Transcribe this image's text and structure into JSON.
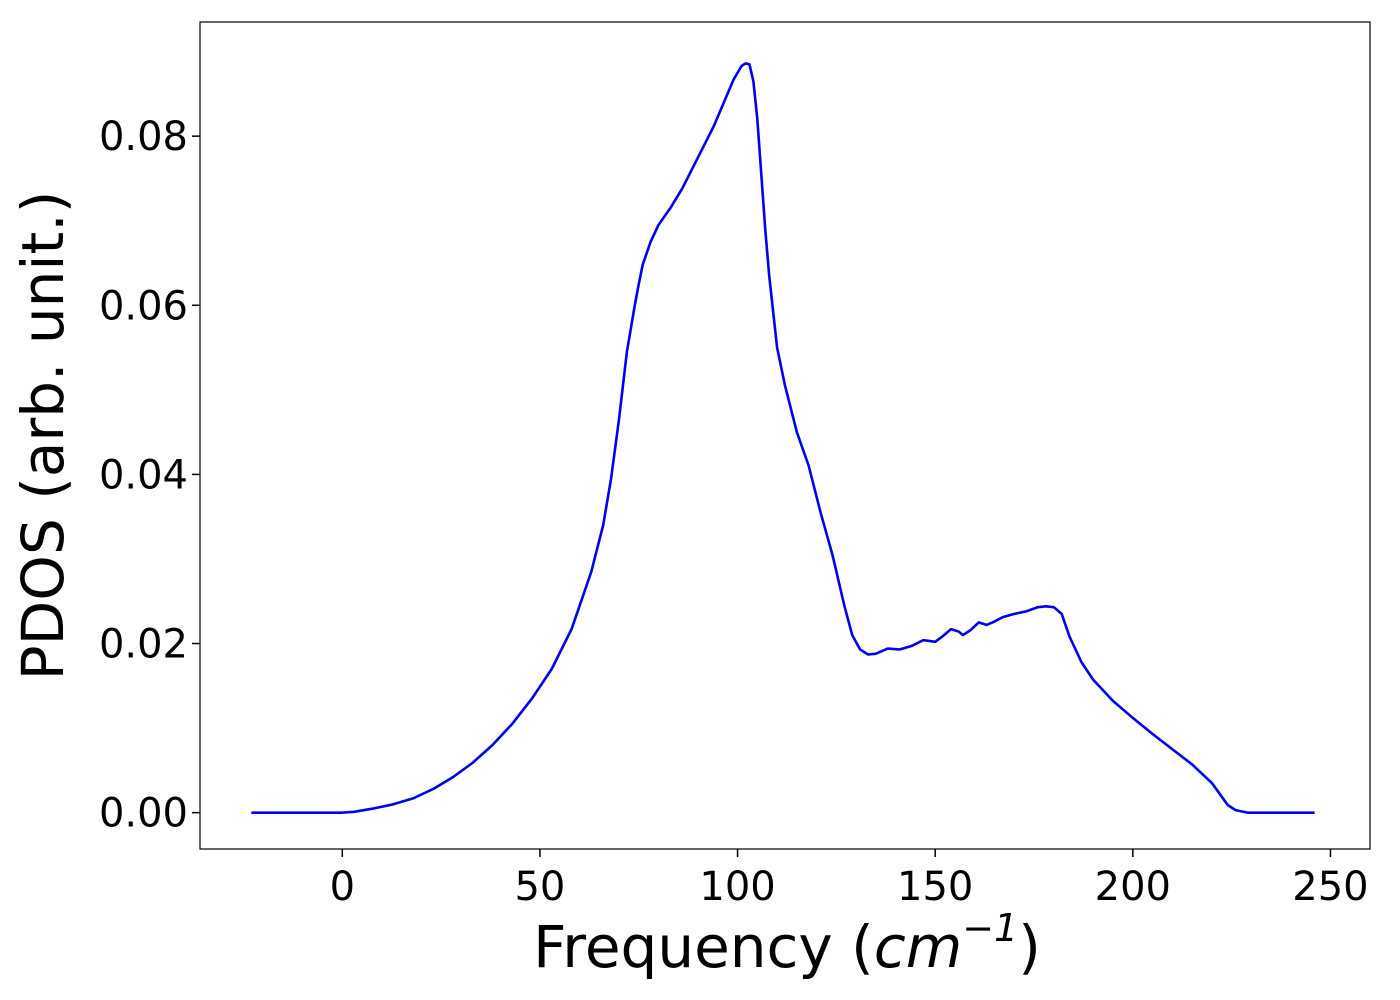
{
  "chart_data": {
    "type": "line",
    "title": "",
    "xlabel": "Frequency (",
    "xlabel_unit_base": "cm",
    "xlabel_unit_exp": "−1",
    "xlabel_close": ")",
    "ylabel": "PDOS (arb. unit.)",
    "xlim": [
      -36,
      260
    ],
    "ylim": [
      -0.0043,
      0.0935
    ],
    "xticks": [
      0,
      50,
      100,
      150,
      200,
      250
    ],
    "xtick_labels": [
      "0",
      "50",
      "100",
      "150",
      "200",
      "250"
    ],
    "yticks": [
      0.0,
      0.02,
      0.04,
      0.06,
      0.08
    ],
    "ytick_labels": [
      "0.00",
      "0.02",
      "0.04",
      "0.06",
      "0.08"
    ],
    "grid": false,
    "legend": "none",
    "series": [
      {
        "color": "#0000ee",
        "x": [
          -23,
          0,
          3,
          8,
          13,
          18,
          23,
          28,
          33,
          38,
          43,
          48,
          53,
          58,
          63,
          66,
          68,
          70,
          72,
          74,
          75,
          76,
          78,
          80,
          83,
          86,
          90,
          94,
          97,
          99,
          101,
          102,
          103,
          104,
          105,
          106,
          107,
          108,
          110,
          112,
          115,
          118,
          121,
          124,
          127,
          129,
          131,
          133,
          135,
          138,
          141,
          144,
          147,
          150,
          152,
          154,
          156,
          157,
          159,
          161,
          163,
          165,
          167,
          170,
          173,
          176,
          178,
          180,
          182,
          184,
          187,
          190,
          195,
          200,
          205,
          210,
          215,
          220,
          222,
          224,
          226,
          229,
          235,
          246
        ],
        "y": [
          0.0,
          0.0,
          0.0001,
          0.0005,
          0.001,
          0.0017,
          0.0028,
          0.0042,
          0.0059,
          0.008,
          0.0105,
          0.0135,
          0.017,
          0.0217,
          0.0285,
          0.034,
          0.0395,
          0.0465,
          0.0545,
          0.06,
          0.0625,
          0.0648,
          0.0675,
          0.0695,
          0.0715,
          0.0738,
          0.0775,
          0.0812,
          0.0845,
          0.0867,
          0.0883,
          0.0886,
          0.0885,
          0.0865,
          0.082,
          0.0755,
          0.069,
          0.0635,
          0.055,
          0.0505,
          0.045,
          0.041,
          0.0355,
          0.0305,
          0.0245,
          0.021,
          0.0193,
          0.0187,
          0.0188,
          0.0194,
          0.0193,
          0.0197,
          0.0204,
          0.0202,
          0.0209,
          0.0217,
          0.0214,
          0.021,
          0.0216,
          0.0225,
          0.0222,
          0.0226,
          0.0231,
          0.0235,
          0.0238,
          0.0243,
          0.0244,
          0.0243,
          0.0235,
          0.0208,
          0.0178,
          0.0157,
          0.0132,
          0.0112,
          0.0093,
          0.0075,
          0.0057,
          0.0035,
          0.0022,
          0.0009,
          0.0003,
          0.0,
          0.0,
          0.0
        ]
      }
    ]
  }
}
